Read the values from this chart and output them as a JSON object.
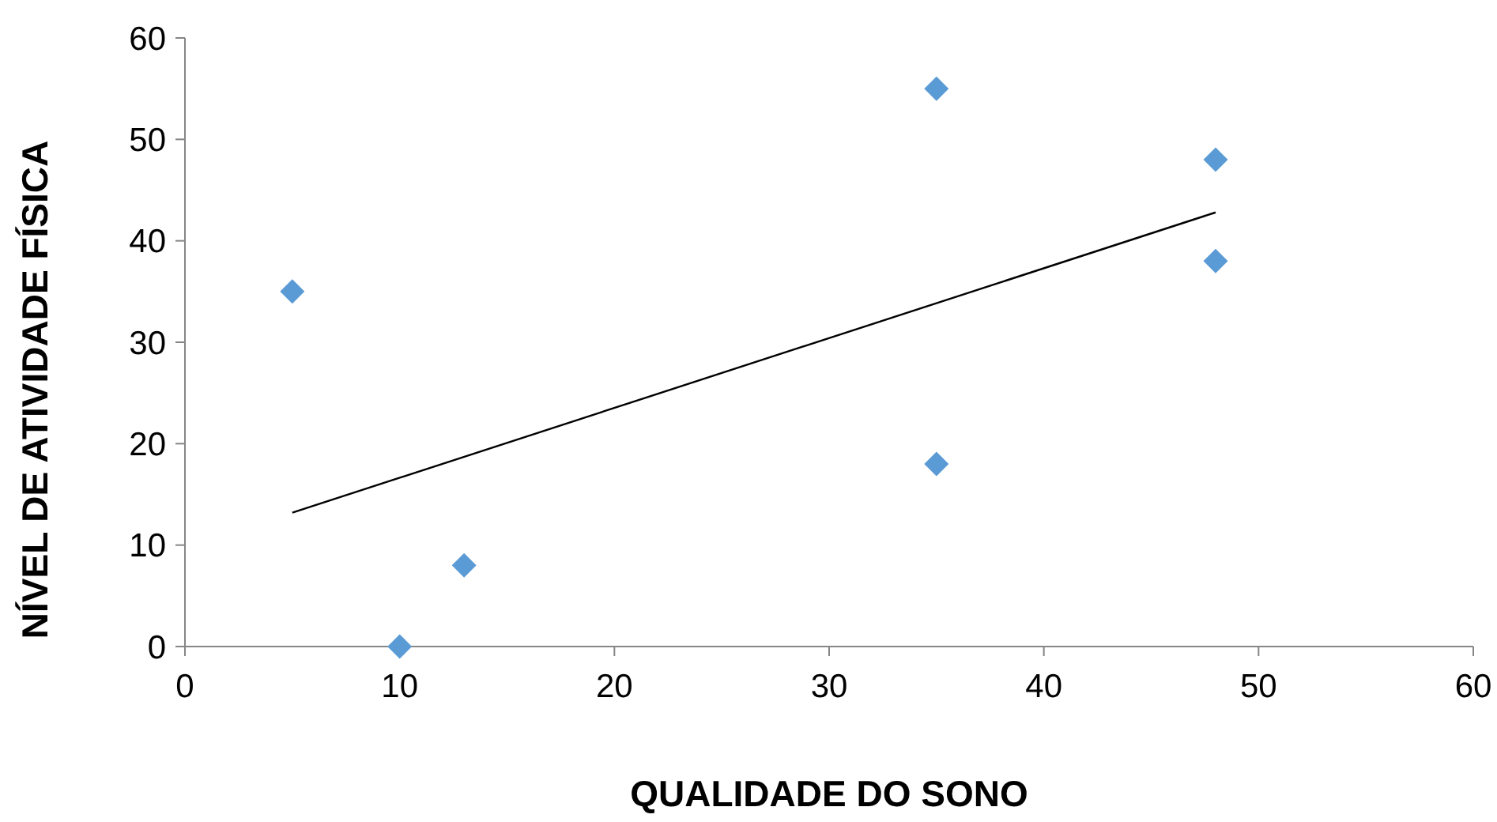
{
  "chart_data": {
    "type": "scatter",
    "xlabel": "QUALIDADE DO SONO",
    "ylabel": "NÍVEL DE ATIVIDADE FÍSICA",
    "xlim": [
      0,
      60
    ],
    "xticks": [
      0,
      10,
      20,
      30,
      40,
      50,
      60
    ],
    "ylim": [
      0,
      60
    ],
    "yticks": [
      0,
      10,
      20,
      30,
      40,
      50,
      60
    ],
    "grid": false,
    "series": [
      {
        "color": "#5b9bd5",
        "marker": "diamond",
        "x": [
          5,
          10,
          13,
          35,
          35,
          48,
          48
        ],
        "values": [
          35,
          0,
          8,
          55,
          18,
          48,
          38
        ]
      },
      {
        "type": "line",
        "color": "#000000",
        "marker": "none",
        "line_style": "solid",
        "x": [
          5,
          48
        ],
        "values": [
          13.2,
          42.8
        ]
      }
    ]
  }
}
